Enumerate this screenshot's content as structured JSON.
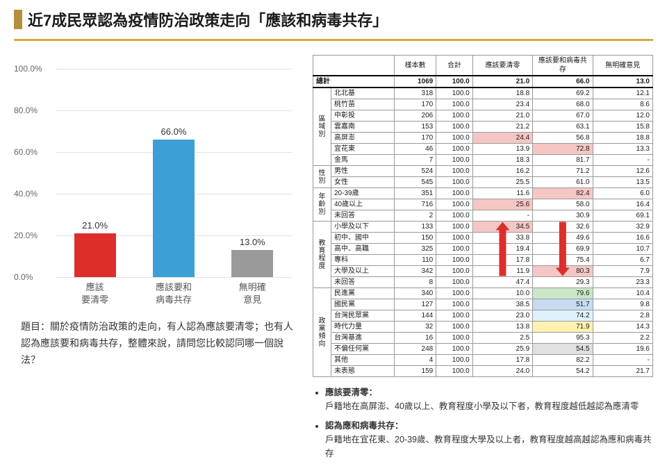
{
  "title": "近7成民眾認為疫情防治政策走向「應該和病毒共存」",
  "chart": {
    "type": "bar",
    "ylim": [
      0,
      100
    ],
    "ytick_step": 20,
    "y_suffix": ".0%",
    "grid_color": "#e0e0e0",
    "axis_color": "#b0b0b0",
    "bg": "#ffffff",
    "bars": [
      {
        "label_l1": "應該",
        "label_l2": "要清零",
        "value": 21.0,
        "color": "#dc2f2b"
      },
      {
        "label_l1": "應該要和",
        "label_l2": "病毒共存",
        "value": 66.0,
        "color": "#3ca0d6"
      },
      {
        "label_l1": "無明確",
        "label_l2": "意見",
        "value": 13.0,
        "color": "#9a9a9a"
      }
    ]
  },
  "question": "題目：關於疫情防治政策的走向，有人認為應該要清零；也有人認為應該要和病毒共存，整體來說，請問您比較認同哪一個說法？",
  "table": {
    "headers": [
      "樣本數",
      "合計",
      "應該要清零",
      "應該要和病毒共存",
      "無明確意見"
    ],
    "total_label": "總計",
    "total": [
      "1069",
      "100.0",
      "21.0",
      "66.0",
      "13.0"
    ],
    "groups": [
      {
        "name": "區域別",
        "rows": [
          {
            "label": "北北基",
            "cells": [
              "318",
              "100.0",
              "18.8",
              "69.2",
              "12.1"
            ]
          },
          {
            "label": "桃竹苗",
            "cells": [
              "170",
              "100.0",
              "23.4",
              "68.0",
              "8.6"
            ]
          },
          {
            "label": "中彰投",
            "cells": [
              "206",
              "100.0",
              "21.0",
              "67.0",
              "12.0"
            ]
          },
          {
            "label": "雲嘉南",
            "cells": [
              "153",
              "100.0",
              "21.2",
              "63.1",
              "15.8"
            ]
          },
          {
            "label": "高屏澎",
            "cells": [
              "170",
              "100.0",
              "24.4",
              "56.8",
              "18.8"
            ],
            "hl": {
              "2": "#f4c7c5"
            }
          },
          {
            "label": "宜花東",
            "cells": [
              "46",
              "100.0",
              "13.9",
              "72.8",
              "13.3"
            ],
            "hl": {
              "3": "#f4c7c5"
            }
          },
          {
            "label": "金馬",
            "cells": [
              "7",
              "100.0",
              "18.3",
              "81.7",
              "-"
            ]
          }
        ]
      },
      {
        "name": "性別",
        "rows": [
          {
            "label": "男性",
            "cells": [
              "524",
              "100.0",
              "16.2",
              "71.2",
              "12.6"
            ]
          },
          {
            "label": "女性",
            "cells": [
              "545",
              "100.0",
              "25.5",
              "61.0",
              "13.5"
            ]
          }
        ]
      },
      {
        "name": "年齡別",
        "rows": [
          {
            "label": "20-39歲",
            "cells": [
              "351",
              "100.0",
              "11.6",
              "82.4",
              "6.0"
            ],
            "hl": {
              "3": "#f4c7c5"
            }
          },
          {
            "label": "40歲以上",
            "cells": [
              "716",
              "100.0",
              "25.6",
              "58.0",
              "16.4"
            ],
            "hl": {
              "2": "#f4c7c5"
            }
          },
          {
            "label": "未回答",
            "cells": [
              "2",
              "100.0",
              "-",
              "30.9",
              "69.1"
            ]
          }
        ]
      },
      {
        "name": "教育程度",
        "rows": [
          {
            "label": "小學及以下",
            "cells": [
              "133",
              "100.0",
              "34.5",
              "32.6",
              "32.9"
            ],
            "hl": {
              "2": "#f4c7c5"
            }
          },
          {
            "label": "初中、國中",
            "cells": [
              "150",
              "100.0",
              "33.8",
              "49.6",
              "16.6"
            ]
          },
          {
            "label": "高中、高職",
            "cells": [
              "325",
              "100.0",
              "19.4",
              "69.9",
              "10.7"
            ]
          },
          {
            "label": "專科",
            "cells": [
              "110",
              "100.0",
              "17.8",
              "75.4",
              "6.7"
            ]
          },
          {
            "label": "大學及以上",
            "cells": [
              "342",
              "100.0",
              "11.9",
              "80.3",
              "7.9"
            ],
            "hl": {
              "3": "#f4c7c5"
            }
          },
          {
            "label": "未回答",
            "cells": [
              "8",
              "100.0",
              "47.4",
              "29.3",
              "23.3"
            ]
          }
        ]
      },
      {
        "name": "政黨傾向",
        "rows": [
          {
            "label": "民進黨",
            "cells": [
              "340",
              "100.0",
              "10.0",
              "79.6",
              "10.4"
            ],
            "hl": {
              "3": "#c9e7c9"
            }
          },
          {
            "label": "國民黨",
            "cells": [
              "127",
              "100.0",
              "38.5",
              "51.7",
              "9.8"
            ],
            "hl": {
              "3": "#c7dcef"
            }
          },
          {
            "label": "台灣民眾黨",
            "cells": [
              "144",
              "100.0",
              "23.0",
              "74.2",
              "2.8"
            ],
            "hl": {
              "3": "#dff2fa"
            }
          },
          {
            "label": "時代力量",
            "cells": [
              "32",
              "100.0",
              "13.8",
              "71.9",
              "14.3"
            ],
            "hl": {
              "3": "#fff2b0"
            }
          },
          {
            "label": "台灣基進",
            "cells": [
              "16",
              "100.0",
              "2.5",
              "95.3",
              "2.2"
            ]
          },
          {
            "label": "不偏任何黨",
            "cells": [
              "248",
              "100.0",
              "25.9",
              "54.5",
              "19.6"
            ],
            "hl": {
              "3": "#e0e0e0"
            }
          },
          {
            "label": "其他",
            "cells": [
              "4",
              "100.0",
              "17.8",
              "82.2",
              "-"
            ]
          },
          {
            "label": "未表態",
            "cells": [
              "159",
              "100.0",
              "24.0",
              "54.2",
              "21.7"
            ]
          }
        ]
      }
    ]
  },
  "arrows": {
    "color": "#dc2f2b",
    "col_a": {
      "dir": "up",
      "group": 3
    },
    "col_b": {
      "dir": "down",
      "group": 3
    }
  },
  "bullets": [
    {
      "head": "應該要清零：",
      "body": "戶籍地在高屏澎、40歲以上、教育程度小學及以下者，教育程度越低越認為應清零"
    },
    {
      "head": "認為應和病毒共存：",
      "body": "戶籍地在宜花東、20-39歲、教育程度大學及以上者，教育程度越高越認為應和病毒共存"
    }
  ]
}
